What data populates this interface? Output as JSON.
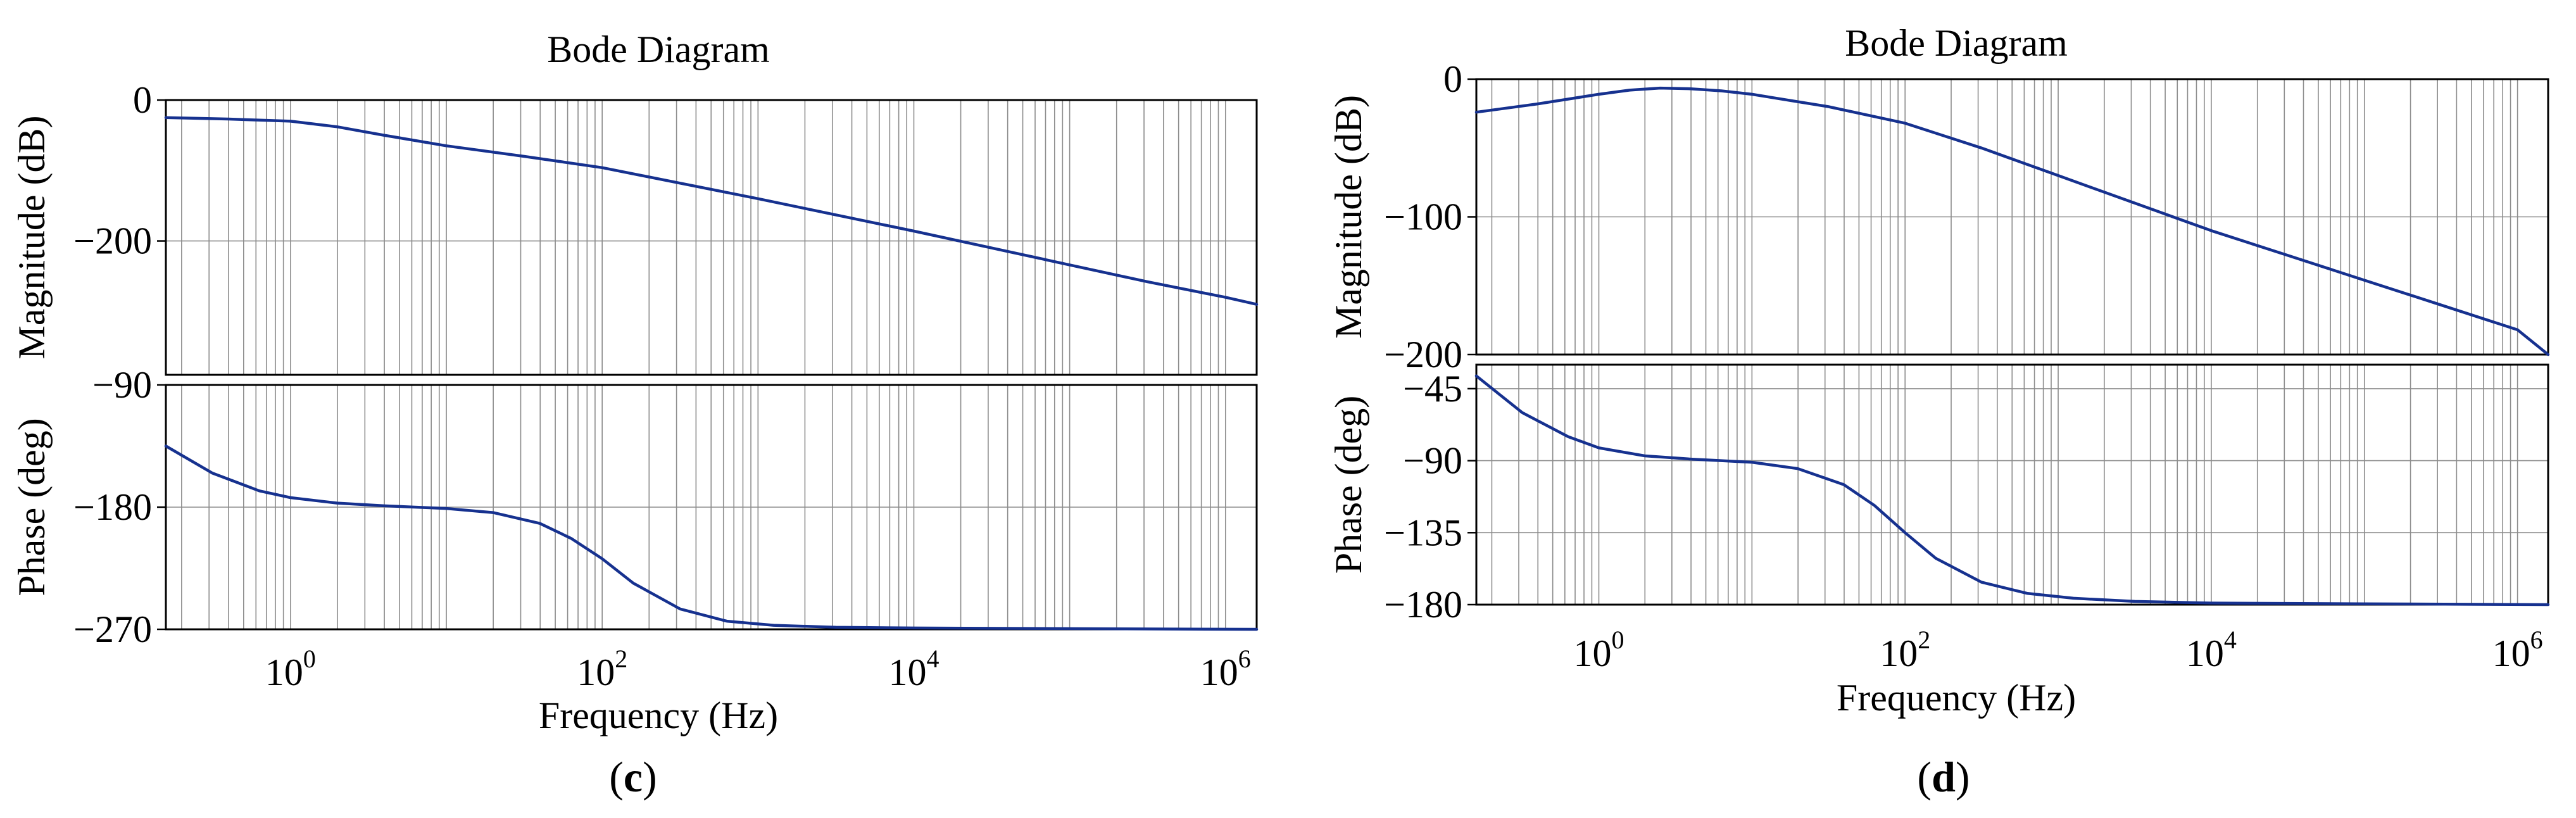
{
  "colors": {
    "curve": "#16318f",
    "grid": "#8c8c8c",
    "frame": "#000000"
  },
  "chart_data": [
    {
      "type": "line",
      "panel_caption": "c",
      "title": "Bode Diagram",
      "xlabel": "Frequency (Hz)",
      "xscale": "log",
      "xlim_decades": [
        -0.8,
        6.2
      ],
      "x_tick_labels": [
        {
          "base": "10",
          "exp": "0",
          "decade": 0
        },
        {
          "base": "10",
          "exp": "2",
          "decade": 2
        },
        {
          "base": "10",
          "exp": "4",
          "decade": 4
        },
        {
          "base": "10",
          "exp": "6",
          "decade": 6
        }
      ],
      "grid": true,
      "magnitude": {
        "ylabel": "Magnitude (dB)",
        "ylim": [
          -390,
          0
        ],
        "y_ticks": [
          {
            "value": 0,
            "label": "0"
          },
          {
            "value": -200,
            "label": "−200"
          }
        ],
        "series": [
          {
            "x_decade": [
              -0.8,
              -0.4,
              0,
              0.3,
              0.6,
              1,
              1.5,
              2,
              2.5,
              3,
              3.5,
              4,
              4.5,
              5,
              5.5,
              6,
              6.2
            ],
            "y": [
              -25,
              -27,
              -30,
              -38,
              -50,
              -65,
              -80,
              -96,
              -118,
              -140,
              -163,
              -186,
              -210,
              -234,
              -258,
              -280,
              -290
            ]
          }
        ]
      },
      "phase": {
        "ylabel": "Phase (deg)",
        "ylim": [
          -270,
          -90
        ],
        "y_ticks": [
          {
            "value": -90,
            "label": "−90"
          },
          {
            "value": -180,
            "label": "−180"
          },
          {
            "value": -270,
            "label": "−270"
          }
        ],
        "series": [
          {
            "x_decade": [
              -0.8,
              -0.5,
              -0.2,
              0,
              0.3,
              0.6,
              1,
              1.3,
              1.6,
              1.8,
              2,
              2.2,
              2.5,
              2.8,
              3.1,
              3.5,
              4,
              5,
              6.2
            ],
            "y": [
              -135,
              -155,
              -168,
              -173,
              -177,
              -179,
              -181,
              -184,
              -192,
              -203,
              -218,
              -236,
              -255,
              -264,
              -267,
              -268.5,
              -269,
              -269.5,
              -270
            ]
          }
        ]
      }
    },
    {
      "type": "line",
      "panel_caption": "d",
      "title": "Bode Diagram",
      "xlabel": "Frequency (Hz)",
      "xscale": "log",
      "xlim_decades": [
        -0.8,
        6.2
      ],
      "x_tick_labels": [
        {
          "base": "10",
          "exp": "0",
          "decade": 0
        },
        {
          "base": "10",
          "exp": "2",
          "decade": 2
        },
        {
          "base": "10",
          "exp": "4",
          "decade": 4
        },
        {
          "base": "10",
          "exp": "6",
          "decade": 6
        }
      ],
      "grid": true,
      "magnitude": {
        "ylabel": "Magnitude (dB)",
        "ylim": [
          -200,
          0
        ],
        "y_ticks": [
          {
            "value": 0,
            "label": "0"
          },
          {
            "value": -100,
            "label": "−100"
          },
          {
            "value": -200,
            "label": "−200"
          }
        ],
        "series": [
          {
            "x_decade": [
              -0.8,
              -0.4,
              0,
              0.2,
              0.4,
              0.6,
              0.8,
              1,
              1.5,
              2,
              2.5,
              3,
              3.5,
              4,
              4.5,
              5,
              5.5,
              6,
              6.2
            ],
            "y": [
              -24,
              -18,
              -11,
              -8,
              -6.5,
              -7,
              -8.5,
              -11,
              -20,
              -32,
              -50,
              -70,
              -90,
              -110,
              -128,
              -146,
              -164,
              -182,
              -200
            ]
          }
        ]
      },
      "phase": {
        "ylabel": "Phase (deg)",
        "ylim": [
          -180,
          -30
        ],
        "y_ticks": [
          {
            "value": -45,
            "label": "−45"
          },
          {
            "value": -90,
            "label": "−90"
          },
          {
            "value": -135,
            "label": "−135"
          },
          {
            "value": -180,
            "label": "−180"
          }
        ],
        "series": [
          {
            "x_decade": [
              -0.8,
              -0.5,
              -0.2,
              0,
              0.3,
              0.6,
              1,
              1.3,
              1.6,
              1.8,
              2,
              2.2,
              2.5,
              2.8,
              3.1,
              3.5,
              4,
              5,
              6.2
            ],
            "y": [
              -37,
              -60,
              -75,
              -82,
              -87,
              -89,
              -91,
              -95,
              -105,
              -118,
              -135,
              -151,
              -166,
              -173,
              -176,
              -178,
              -179,
              -179.5,
              -180
            ]
          }
        ]
      }
    }
  ]
}
